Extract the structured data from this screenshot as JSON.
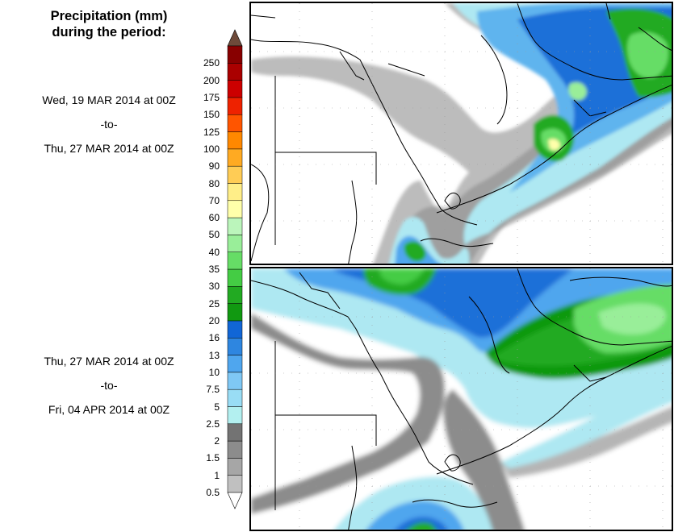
{
  "title_line1": "Precipitation (mm)",
  "title_line2": "during the period:",
  "period1": {
    "start": "Wed, 19 MAR 2014 at 00Z",
    "sep": "-to-",
    "end": "Thu, 27 MAR 2014 at 00Z"
  },
  "period2": {
    "start": "Thu, 27 MAR 2014 at 00Z",
    "sep": "-to-",
    "end": "Fri, 04 APR 2014 at 00Z"
  },
  "colorbar": {
    "levels": [
      "0.5",
      "1",
      "1.5",
      "2",
      "2.5",
      "5",
      "7.5",
      "10",
      "13",
      "16",
      "20",
      "25",
      "30",
      "35",
      "40",
      "50",
      "60",
      "70",
      "80",
      "90",
      "100",
      "125",
      "150",
      "175",
      "200",
      "250"
    ],
    "colors": [
      "#c0c0c0",
      "#a6a6a6",
      "#8c8c8c",
      "#737373",
      "#b3f0f0",
      "#99ddf5",
      "#7fc8f5",
      "#4fa6ee",
      "#2e86e0",
      "#1166d6",
      "#119911",
      "#22aa22",
      "#44cc44",
      "#66dd66",
      "#99ee99",
      "#bbf5bb",
      "#ffffaa",
      "#ffee88",
      "#ffcc55",
      "#ffaa22",
      "#ff8800",
      "#ff5500",
      "#ee2200",
      "#cc0000",
      "#aa0000",
      "#880000"
    ],
    "over_color": "#6e4a3a",
    "under_color": "#ffffff"
  }
}
